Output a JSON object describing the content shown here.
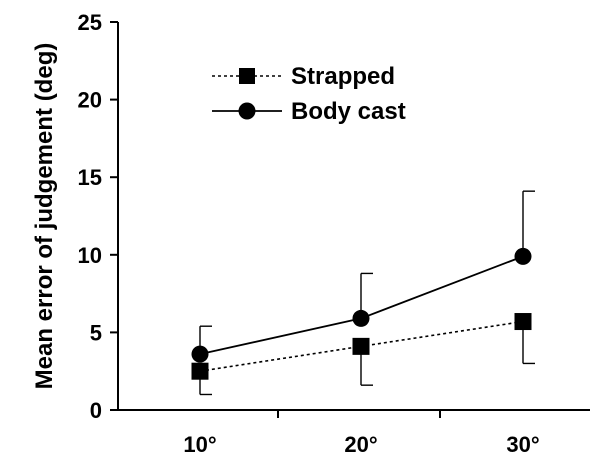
{
  "chart_data": {
    "type": "line",
    "title": "",
    "xlabel": "",
    "ylabel": "Mean error of judgement (deg)",
    "categories": [
      "10°",
      "20°",
      "30°"
    ],
    "ylim": [
      0,
      25
    ],
    "yticks": [
      0,
      5,
      10,
      15,
      20,
      25
    ],
    "grid": false,
    "legend_position": "top-center",
    "series": [
      {
        "name": "Strapped",
        "marker": "square",
        "line_style": "dotted",
        "values": [
          2.5,
          4.1,
          5.7
        ],
        "error": [
          1.5,
          2.5,
          2.7
        ]
      },
      {
        "name": "Body cast",
        "marker": "circle",
        "line_style": "solid",
        "values": [
          3.6,
          5.9,
          9.9
        ],
        "error": [
          1.8,
          2.9,
          4.2
        ]
      }
    ],
    "colors": {
      "line": "#000000",
      "marker": "#000000",
      "background": "#ffffff"
    }
  }
}
